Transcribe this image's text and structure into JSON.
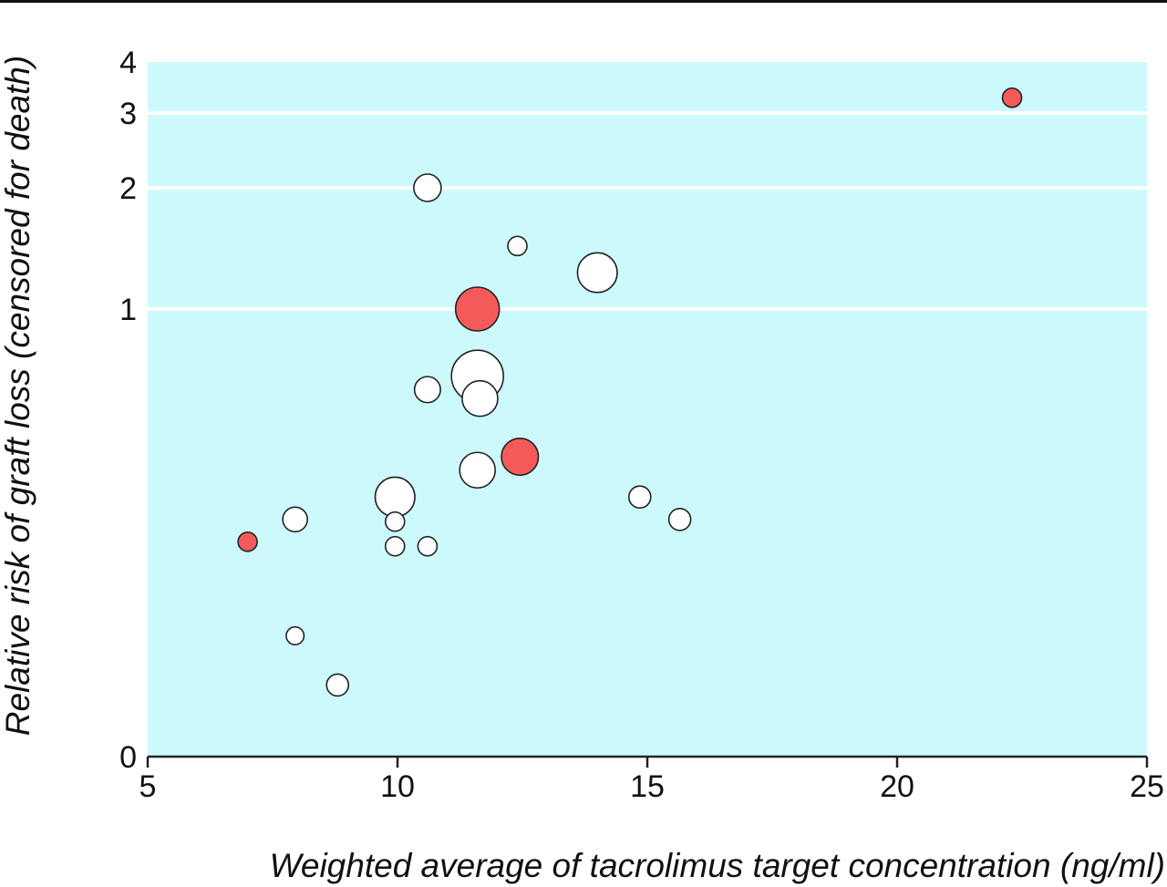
{
  "chart_data": {
    "type": "scatter",
    "title": "",
    "xlabel": "Weighted average of tacrolimus target concentration (ng/ml)",
    "ylabel": "Relative risk of graft loss (censored for death)",
    "xlim": [
      5,
      25
    ],
    "ylim": [
      0,
      4
    ],
    "x_ticks": [
      {
        "value": 5,
        "label": "5"
      },
      {
        "value": 10,
        "label": "10"
      },
      {
        "value": 15,
        "label": "15"
      },
      {
        "value": 20,
        "label": "20"
      },
      {
        "value": 25,
        "label": "25"
      }
    ],
    "y_ticks": [
      {
        "value": 0,
        "label": "0"
      },
      {
        "value": 1,
        "label": "1"
      },
      {
        "value": 2,
        "label": "2"
      },
      {
        "value": 3,
        "label": "3"
      },
      {
        "value": 4,
        "label": "4"
      }
    ],
    "grid_y": [
      1,
      2,
      3
    ],
    "grid": true,
    "legend": "none",
    "colors": {
      "plot_background": "#ccf9fb",
      "gridline": "#ffffff",
      "open_point": "#ffffff",
      "filled_point": "#f55a5a",
      "point_outline": "#222222"
    },
    "points": [
      {
        "x": 22.3,
        "y": 3.3,
        "size": 0.7,
        "filled": true
      },
      {
        "x": 10.6,
        "y": 2.0,
        "size": 1.0,
        "filled": false
      },
      {
        "x": 12.4,
        "y": 1.52,
        "size": 0.7,
        "filled": false
      },
      {
        "x": 14.0,
        "y": 1.3,
        "size": 1.45,
        "filled": false
      },
      {
        "x": 11.6,
        "y": 1.0,
        "size": 1.6,
        "filled": true
      },
      {
        "x": 11.6,
        "y": 0.85,
        "size": 1.9,
        "filled": false
      },
      {
        "x": 10.6,
        "y": 0.82,
        "size": 0.95,
        "filled": false
      },
      {
        "x": 11.65,
        "y": 0.8,
        "size": 1.3,
        "filled": false
      },
      {
        "x": 12.45,
        "y": 0.67,
        "size": 1.35,
        "filled": true
      },
      {
        "x": 11.6,
        "y": 0.64,
        "size": 1.3,
        "filled": false
      },
      {
        "x": 9.95,
        "y": 0.58,
        "size": 1.45,
        "filled": false
      },
      {
        "x": 14.85,
        "y": 0.58,
        "size": 0.8,
        "filled": false
      },
      {
        "x": 7.95,
        "y": 0.53,
        "size": 0.9,
        "filled": false
      },
      {
        "x": 9.95,
        "y": 0.525,
        "size": 0.7,
        "filled": false
      },
      {
        "x": 15.65,
        "y": 0.53,
        "size": 0.8,
        "filled": false
      },
      {
        "x": 7.0,
        "y": 0.48,
        "size": 0.7,
        "filled": true
      },
      {
        "x": 9.95,
        "y": 0.47,
        "size": 0.7,
        "filled": false
      },
      {
        "x": 10.6,
        "y": 0.47,
        "size": 0.7,
        "filled": false
      },
      {
        "x": 7.95,
        "y": 0.27,
        "size": 0.65,
        "filled": false
      },
      {
        "x": 8.8,
        "y": 0.16,
        "size": 0.8,
        "filled": false
      }
    ]
  }
}
